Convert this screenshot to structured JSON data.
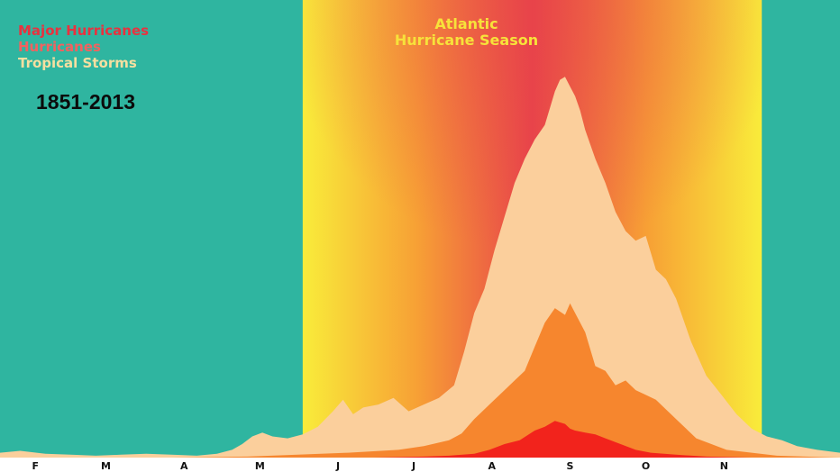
{
  "colors": {
    "background": "#2fb5a0",
    "season_edge": "#f9ec3a",
    "season_mid": "#f7a035",
    "season_peak": "#e8434a",
    "tropical_storms": "#fbcf9c",
    "hurricanes": "#f6862e",
    "major_hurricanes": "#f2231c",
    "axis_bar": "#ffffff",
    "axis_text": "#111111"
  },
  "legend": {
    "items": [
      {
        "label": "Major Hurricanes",
        "color": "#e8323f"
      },
      {
        "label": "Hurricanes",
        "color": "#f2625f"
      },
      {
        "label": "Tropical Storms",
        "color": "#f6dfa0"
      }
    ]
  },
  "period_label": "1851-2013",
  "season_title": {
    "line1": "Atlantic",
    "line2": "Hurricane Season",
    "color": "#f7e23a"
  },
  "chart_data": {
    "type": "area",
    "x_unit": "day of year",
    "xlim": [
      32,
      365
    ],
    "ylim": [
      0,
      400
    ],
    "season_band": {
      "start_month": "June 1",
      "end_month": "November 30",
      "start_day": 152,
      "end_day": 334
    },
    "x_ticks": [
      {
        "label": "F",
        "day": 46
      },
      {
        "label": "M",
        "day": 74
      },
      {
        "label": "A",
        "day": 105
      },
      {
        "label": "M",
        "day": 135
      },
      {
        "label": "J",
        "day": 166
      },
      {
        "label": "J",
        "day": 196
      },
      {
        "label": "A",
        "day": 227
      },
      {
        "label": "S",
        "day": 258
      },
      {
        "label": "O",
        "day": 288
      },
      {
        "label": "N",
        "day": 319
      }
    ],
    "series": [
      {
        "name": "Tropical Storms",
        "x": [
          32,
          40,
          50,
          60,
          70,
          80,
          90,
          100,
          110,
          118,
          124,
          128,
          132,
          136,
          140,
          146,
          152,
          158,
          164,
          168,
          172,
          176,
          182,
          188,
          194,
          200,
          206,
          212,
          216,
          220,
          224,
          228,
          232,
          236,
          240,
          244,
          248,
          252,
          254,
          256,
          258,
          260,
          262,
          264,
          266,
          268,
          272,
          276,
          280,
          284,
          288,
          292,
          296,
          300,
          306,
          312,
          318,
          324,
          330,
          336,
          342,
          348,
          356,
          365
        ],
        "y": [
          5,
          7,
          4,
          3,
          2,
          3,
          4,
          3,
          2,
          4,
          8,
          14,
          22,
          26,
          22,
          20,
          24,
          32,
          48,
          60,
          45,
          52,
          55,
          62,
          48,
          55,
          62,
          75,
          110,
          150,
          175,
          215,
          250,
          285,
          310,
          330,
          345,
          380,
          392,
          395,
          385,
          375,
          360,
          340,
          325,
          310,
          285,
          255,
          235,
          225,
          230,
          195,
          185,
          165,
          120,
          85,
          65,
          45,
          30,
          22,
          18,
          12,
          8,
          5
        ]
      },
      {
        "name": "Hurricanes",
        "x": [
          100,
          130,
          150,
          170,
          190,
          200,
          210,
          215,
          220,
          226,
          232,
          236,
          240,
          244,
          248,
          252,
          256,
          258,
          260,
          264,
          268,
          272,
          276,
          280,
          284,
          288,
          292,
          296,
          300,
          308,
          320,
          340,
          365
        ],
        "y": [
          0,
          1,
          3,
          5,
          8,
          12,
          18,
          25,
          40,
          55,
          70,
          80,
          90,
          115,
          140,
          155,
          148,
          160,
          150,
          130,
          95,
          90,
          75,
          80,
          70,
          65,
          60,
          50,
          40,
          20,
          8,
          2,
          0
        ]
      },
      {
        "name": "Major Hurricanes",
        "x": [
          180,
          200,
          210,
          220,
          226,
          232,
          238,
          244,
          248,
          252,
          256,
          258,
          260,
          264,
          268,
          272,
          278,
          284,
          290,
          300,
          312,
          330
        ],
        "y": [
          0,
          1,
          2,
          4,
          8,
          14,
          18,
          28,
          32,
          38,
          35,
          30,
          28,
          26,
          24,
          20,
          14,
          8,
          5,
          3,
          1,
          0
        ]
      }
    ]
  }
}
